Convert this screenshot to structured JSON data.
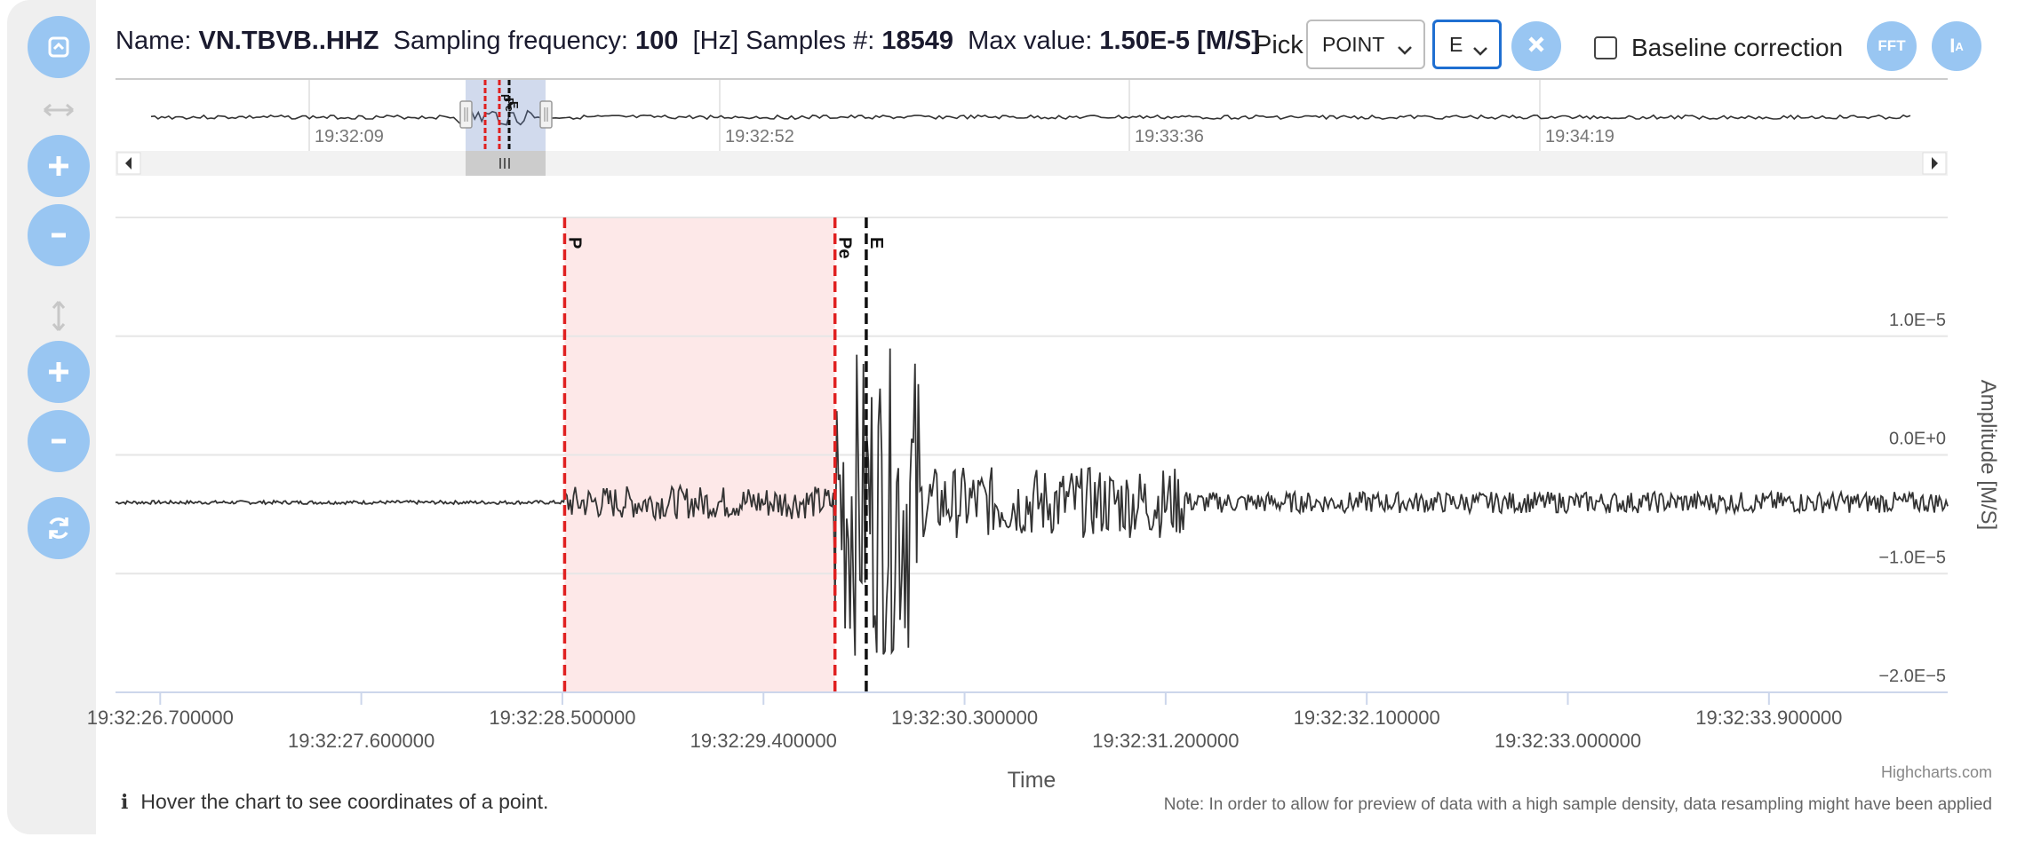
{
  "header": {
    "name_label": "Name:",
    "name_value": "VN.TBVB..HHZ",
    "freq_label": "Sampling frequency:",
    "freq_value": "100",
    "freq_unit": "[Hz]",
    "samples_label": "Samples #:",
    "samples_value": "18549",
    "max_label": "Max value:",
    "max_value": "1.50E-5 [M/S]"
  },
  "controls": {
    "pick_label": "Pick",
    "pick_mode": "POINT",
    "pick_phase": "E",
    "baseline_label": "Baseline correction",
    "baseline_checked": false,
    "fft_label": "FFT",
    "ia_label": "I",
    "ia_sub": "A"
  },
  "sidebar": {
    "icons": [
      "fullscreen-icon",
      "horizontal-arrows-icon",
      "zoom-in-x-icon",
      "zoom-out-x-icon",
      "vertical-arrows-icon",
      "zoom-in-y-icon",
      "zoom-out-y-icon",
      "reset-icon"
    ]
  },
  "navigator": {
    "ticks": [
      "19:32:09",
      "19:32:52",
      "19:33:36",
      "19:34:19"
    ],
    "pick_labels": [
      "P",
      "Pe",
      "E"
    ]
  },
  "chart_data": {
    "type": "line",
    "title": "",
    "xlabel": "Time",
    "ylabel": "Amplitude [M/S]",
    "x_range": [
      "19:32:26.5",
      "19:32:34.7"
    ],
    "ylim": [
      -2e-05,
      2e-05
    ],
    "y_ticks": [
      "1.0E−5",
      "0.0E+0",
      "−1.0E−5",
      "−2.0E−5"
    ],
    "x_ticks": [
      "19:32:26.700000",
      "19:32:27.600000",
      "19:32:28.500000",
      "19:32:29.400000",
      "19:32:30.300000",
      "19:32:31.200000",
      "19:32:32.100000",
      "19:32:33.000000",
      "19:32:33.900000"
    ],
    "picks": [
      {
        "label": "P",
        "time": "19:32:28.51",
        "color": "#e02020",
        "style": "dashed"
      },
      {
        "label": "Pe",
        "time": "19:32:29.72",
        "color": "#e02020",
        "style": "dashed"
      },
      {
        "label": "E",
        "time": "19:32:29.86",
        "color": "#111111",
        "style": "dashed"
      }
    ],
    "highlight_band": {
      "from": "19:32:28.51",
      "to": "19:32:29.72",
      "color": "#fde8e8"
    },
    "series": [
      {
        "values_description": "waveform",
        "baseline": -4e-06,
        "segments": [
          {
            "from": "19:32:26.5",
            "to": "19:32:28.51",
            "amplitude": 1.5e-07
          },
          {
            "from": "19:32:28.51",
            "to": "19:32:29.72",
            "amplitude": 1.4e-06
          },
          {
            "from": "19:32:29.72",
            "to": "19:32:30.1",
            "amplitude": 1.3e-05
          },
          {
            "from": "19:32:30.1",
            "to": "19:32:31.3",
            "amplitude": 3e-06
          },
          {
            "from": "19:32:31.3",
            "to": "19:32:34.7",
            "amplitude": 9e-07
          }
        ]
      }
    ],
    "grid": true,
    "legend": "none"
  },
  "footer": {
    "hover_text": "Hover the chart to see coordinates of a point.",
    "note": "Note: In order to allow for preview of data with a high sample density, data resampling might have been applied",
    "credits": "Highcharts.com"
  },
  "colors": {
    "accent": "#99c6f2",
    "pick_red": "#e02020",
    "pick_black": "#111111",
    "band": "#fde8e8",
    "line": "#333333"
  }
}
